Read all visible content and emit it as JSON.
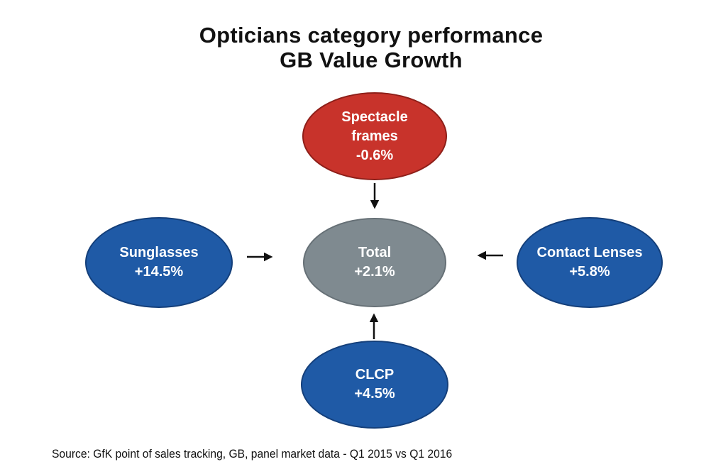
{
  "title": {
    "line1": "Opticians category performance",
    "line2": "GB Value Growth"
  },
  "nodes": {
    "spectacle": {
      "line1": "Spectacle",
      "line2": "frames",
      "value": "-0.6%",
      "color": "#c8332b"
    },
    "total": {
      "label": "Total",
      "value": "+2.1%",
      "color": "#7f8a90"
    },
    "sunglasses": {
      "label": "Sunglasses",
      "value": "+14.5%",
      "color": "#1f5aa6"
    },
    "contact": {
      "label": "Contact Lenses",
      "value": "+5.8%",
      "color": "#1f5aa6"
    },
    "clcp": {
      "label": "CLCP",
      "value": "+4.5%",
      "color": "#1f5aa6"
    }
  },
  "source": "Source: GfK point of sales tracking, GB, panel market data - Q1 2015 vs Q1 2016"
}
